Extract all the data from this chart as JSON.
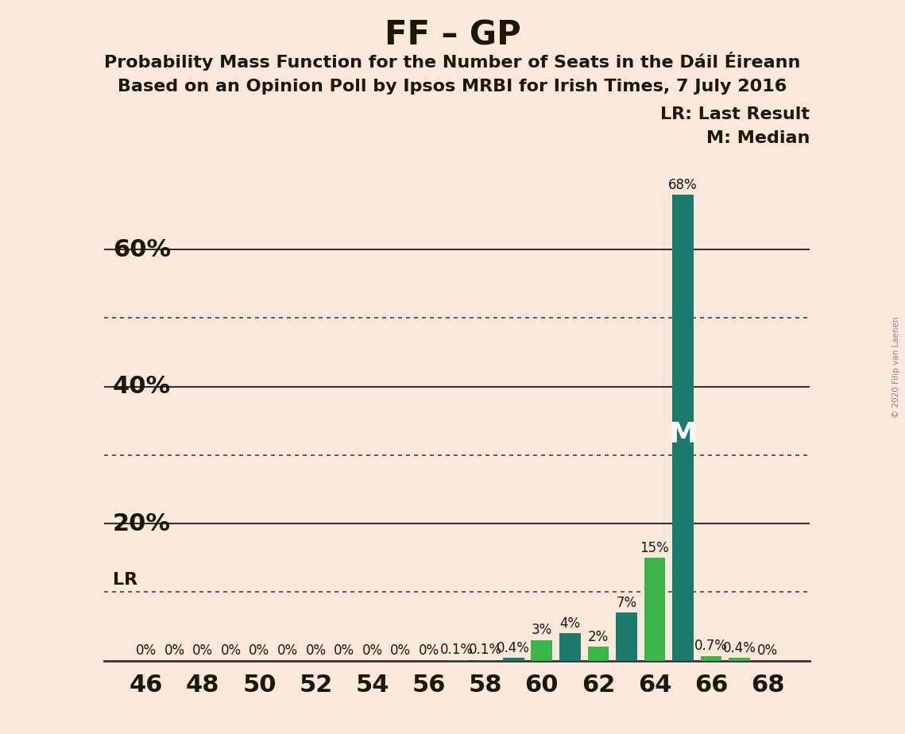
{
  "title": "FF – GP",
  "subtitle1": "Probability Mass Function for the Number of Seats in the Dáil Éireann",
  "subtitle2": "Based on an Opinion Poll by Ipsos MRBI for Irish Times, 7 July 2016",
  "copyright": "© 2020 Filip van Laenen",
  "background_color": "#fae8dc",
  "seats": [
    46,
    47,
    48,
    49,
    50,
    51,
    52,
    53,
    54,
    55,
    56,
    57,
    58,
    59,
    60,
    61,
    62,
    63,
    64,
    65,
    66,
    67,
    68
  ],
  "probabilities": [
    0.0,
    0.0,
    0.0,
    0.0,
    0.0,
    0.0,
    0.0,
    0.0,
    0.0,
    0.0,
    0.0,
    0.1,
    0.1,
    0.4,
    3.0,
    4.0,
    2.0,
    7.0,
    15.0,
    68.0,
    0.7,
    0.4,
    0.0
  ],
  "labels": [
    "0%",
    "0%",
    "0%",
    "0%",
    "0%",
    "0%",
    "0%",
    "0%",
    "0%",
    "0%",
    "0%",
    "0.1%",
    "0.1%",
    "0.4%",
    "3%",
    "4%",
    "2%",
    "7%",
    "15%",
    "68%",
    "0.7%",
    "0.4%",
    "0%"
  ],
  "median_seat": 65,
  "last_result_line_pct": 10.0,
  "dark_teal": "#1a7a6b",
  "light_green": "#3ab54a",
  "dark_teal_seats": [
    57,
    58,
    59,
    61,
    63,
    65
  ],
  "ytick_solid": [
    20,
    40,
    60
  ],
  "ytick_dotted": [
    10,
    30,
    50
  ],
  "ylim_max": 75,
  "xlabel_ticks": [
    46,
    48,
    50,
    52,
    54,
    56,
    58,
    60,
    62,
    64,
    66,
    68
  ],
  "xlim_left": 44.5,
  "xlim_right": 69.5,
  "text_color": "#1a1a00",
  "title_fontsize": 30,
  "subtitle_fontsize": 16,
  "axis_tick_fontsize": 22,
  "bar_label_fontsize": 12,
  "legend_fontsize": 16,
  "lr_label_fontsize": 16,
  "m_label_fontsize": 26,
  "ytick_label_fontsize": 22,
  "bar_width": 0.75
}
